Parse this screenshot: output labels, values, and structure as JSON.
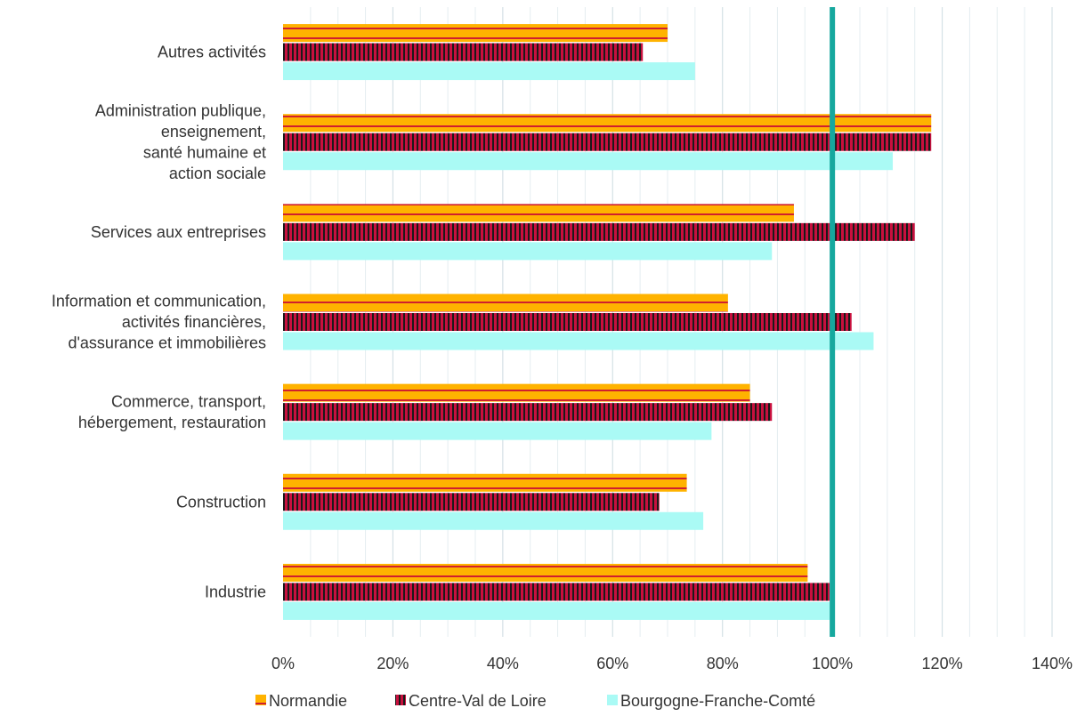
{
  "chart_data": {
    "type": "bar",
    "orientation": "horizontal",
    "categories": [
      [
        "Autres activités"
      ],
      [
        "Administration publique,",
        "enseignement,",
        "santé humaine et",
        "action sociale"
      ],
      [
        "Services aux entreprises"
      ],
      [
        "Information et communication,",
        "activités financières,",
        "d'assurance et immobilières"
      ],
      [
        "Commerce, transport,",
        "hébergement, restauration"
      ],
      [
        "Construction"
      ],
      [
        "Industrie"
      ]
    ],
    "series": [
      {
        "name": "Normandie",
        "color": "#FFB300",
        "pattern": "horizontal-stripes",
        "values": [
          70,
          118,
          93,
          81,
          85,
          73.5,
          95.5
        ]
      },
      {
        "name": "Centre-Val de Loire",
        "color": "#C8103E",
        "pattern": "vertical-stripes",
        "values": [
          65.5,
          118,
          115,
          103.5,
          89,
          68.5,
          99.5
        ]
      },
      {
        "name": "Bourgogne-Franche-Comté",
        "color": "#AAFAF5",
        "pattern": "solid",
        "values": [
          75,
          111,
          89,
          107.5,
          78,
          76.5,
          99.5
        ]
      }
    ],
    "xlim": [
      0,
      140
    ],
    "xticks": [
      "0%",
      "20%",
      "40%",
      "60%",
      "80%",
      "100%",
      "120%",
      "140%"
    ],
    "xtick_values": [
      0,
      20,
      40,
      60,
      80,
      100,
      120,
      140
    ],
    "reference_line": {
      "value": 100,
      "color": "#16A89E"
    },
    "grid": true,
    "legend_position": "bottom",
    "title": "",
    "xlabel": "",
    "ylabel": ""
  }
}
